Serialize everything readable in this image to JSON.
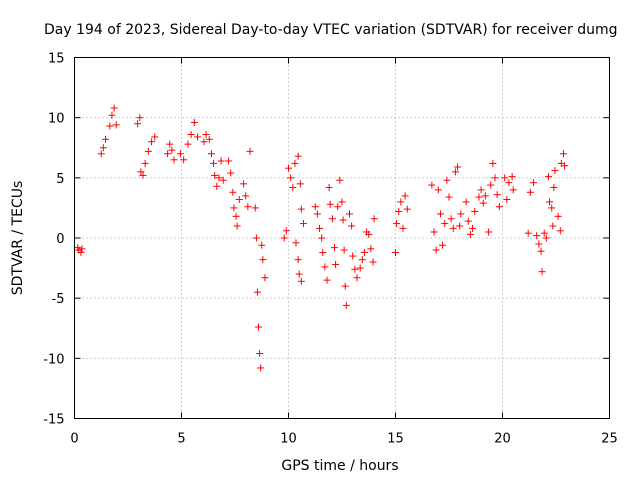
{
  "chart_data": {
    "type": "scatter",
    "title": "Day 194 of 2023, Sidereal Day-to-day VTEC variation (SDTVAR) for receiver dumg",
    "xlabel": "GPS time / hours",
    "ylabel": "SDTVAR / TECUs",
    "xlim": [
      0,
      25
    ],
    "ylim": [
      -15,
      15
    ],
    "xticks": [
      0,
      5,
      10,
      15,
      20,
      25
    ],
    "yticks": [
      -15,
      -10,
      -5,
      0,
      5,
      10,
      15
    ],
    "xtick_labels": [
      "0",
      "5",
      "10",
      "15",
      "20",
      "25"
    ],
    "ytick_labels": [
      "-15",
      "-10",
      "-5",
      "0",
      "5",
      "10",
      "15"
    ],
    "grid": true,
    "marker": "plus",
    "color": "#ff0000",
    "series": [
      {
        "name": "SDTVAR",
        "segments": [
          [
            0.15,
            -0.8
          ],
          [
            0.2,
            -1.0
          ],
          [
            0.3,
            -1.2
          ],
          [
            0.35,
            -0.9
          ],
          [
            1.25,
            7.0
          ],
          [
            1.35,
            7.5
          ],
          [
            1.45,
            8.2
          ],
          [
            1.65,
            9.3
          ],
          [
            1.75,
            10.2
          ],
          [
            1.85,
            10.8
          ],
          [
            1.95,
            9.4
          ],
          [
            2.95,
            9.5
          ],
          [
            3.05,
            10.0
          ],
          [
            3.1,
            5.5
          ],
          [
            3.2,
            5.2
          ],
          [
            3.3,
            6.2
          ],
          [
            3.45,
            7.2
          ],
          [
            3.6,
            8.0
          ],
          [
            3.75,
            8.4
          ],
          [
            4.35,
            7.0
          ],
          [
            4.45,
            7.8
          ],
          [
            4.55,
            7.3
          ],
          [
            4.65,
            6.5
          ],
          [
            4.95,
            7.0
          ],
          [
            5.1,
            6.5
          ],
          [
            5.3,
            7.8
          ],
          [
            5.45,
            8.6
          ],
          [
            5.6,
            9.6
          ],
          [
            5.75,
            8.4
          ],
          [
            6.05,
            8.0
          ],
          [
            6.15,
            8.6
          ],
          [
            6.3,
            8.2
          ],
          [
            6.4,
            7.0
          ],
          [
            6.5,
            6.2
          ],
          [
            6.55,
            5.2
          ],
          [
            6.65,
            4.3
          ],
          [
            6.75,
            5.0
          ],
          [
            6.85,
            6.4
          ],
          [
            6.95,
            4.8
          ],
          [
            7.2,
            6.4
          ],
          [
            7.3,
            5.4
          ],
          [
            7.4,
            3.8
          ],
          [
            7.45,
            2.5
          ],
          [
            7.55,
            1.8
          ],
          [
            7.6,
            1.0
          ],
          [
            7.7,
            3.2
          ],
          [
            7.9,
            4.5
          ],
          [
            8.0,
            3.5
          ],
          [
            8.1,
            2.6
          ],
          [
            8.2,
            7.2
          ],
          [
            8.45,
            2.5
          ],
          [
            8.5,
            0.0
          ],
          [
            8.55,
            -4.5
          ],
          [
            8.6,
            -7.4
          ],
          [
            8.65,
            -9.6
          ],
          [
            8.7,
            -10.8
          ],
          [
            8.75,
            -0.6
          ],
          [
            8.8,
            -1.8
          ],
          [
            8.9,
            -3.3
          ],
          [
            9.8,
            0.0
          ],
          [
            9.9,
            0.6
          ],
          [
            10.0,
            5.8
          ],
          [
            10.1,
            5.0
          ],
          [
            10.2,
            4.2
          ],
          [
            10.3,
            6.2
          ],
          [
            10.45,
            6.8
          ],
          [
            10.55,
            4.5
          ],
          [
            10.6,
            2.4
          ],
          [
            10.7,
            1.2
          ],
          [
            10.35,
            -0.4
          ],
          [
            10.45,
            -1.8
          ],
          [
            10.5,
            -3.0
          ],
          [
            10.6,
            -3.6
          ],
          [
            11.25,
            2.6
          ],
          [
            11.35,
            2.0
          ],
          [
            11.45,
            0.8
          ],
          [
            11.55,
            0.0
          ],
          [
            11.6,
            -1.2
          ],
          [
            11.7,
            -2.4
          ],
          [
            11.8,
            -3.5
          ],
          [
            11.9,
            4.2
          ],
          [
            11.95,
            2.8
          ],
          [
            12.05,
            1.6
          ],
          [
            12.15,
            -0.8
          ],
          [
            12.2,
            -2.2
          ],
          [
            12.3,
            2.6
          ],
          [
            12.4,
            4.8
          ],
          [
            12.5,
            3.0
          ],
          [
            12.55,
            1.5
          ],
          [
            12.6,
            -1.0
          ],
          [
            12.65,
            -4.0
          ],
          [
            12.7,
            -5.6
          ],
          [
            12.85,
            2.0
          ],
          [
            12.95,
            1.0
          ],
          [
            13.0,
            -1.5
          ],
          [
            13.1,
            -2.6
          ],
          [
            13.2,
            -3.3
          ],
          [
            13.35,
            -2.5
          ],
          [
            13.45,
            -1.8
          ],
          [
            13.55,
            -1.2
          ],
          [
            13.65,
            0.5
          ],
          [
            13.75,
            0.3
          ],
          [
            13.85,
            -0.9
          ],
          [
            13.95,
            -2.0
          ],
          [
            14.0,
            1.6
          ],
          [
            15.0,
            -1.2
          ],
          [
            15.05,
            1.2
          ],
          [
            15.15,
            2.2
          ],
          [
            15.25,
            3.0
          ],
          [
            15.35,
            0.8
          ],
          [
            15.45,
            3.5
          ],
          [
            15.55,
            2.4
          ],
          [
            16.7,
            4.4
          ],
          [
            16.8,
            0.5
          ],
          [
            16.9,
            -1.0
          ],
          [
            17.0,
            4.0
          ],
          [
            17.1,
            2.0
          ],
          [
            17.2,
            -0.6
          ],
          [
            17.3,
            1.2
          ],
          [
            17.4,
            4.8
          ],
          [
            17.5,
            3.4
          ],
          [
            17.6,
            1.6
          ],
          [
            17.7,
            0.8
          ],
          [
            17.8,
            5.5
          ],
          [
            17.9,
            5.9
          ],
          [
            18.0,
            1.0
          ],
          [
            18.05,
            2.0
          ],
          [
            18.3,
            3.0
          ],
          [
            18.4,
            1.4
          ],
          [
            18.5,
            0.3
          ],
          [
            18.6,
            0.8
          ],
          [
            18.7,
            2.2
          ],
          [
            18.9,
            3.4
          ],
          [
            19.0,
            4.0
          ],
          [
            19.1,
            2.9
          ],
          [
            19.2,
            3.5
          ],
          [
            19.35,
            0.5
          ],
          [
            19.45,
            4.4
          ],
          [
            19.55,
            6.2
          ],
          [
            19.65,
            5.0
          ],
          [
            19.75,
            3.6
          ],
          [
            19.85,
            2.6
          ],
          [
            20.1,
            5.0
          ],
          [
            20.2,
            3.2
          ],
          [
            20.3,
            4.6
          ],
          [
            20.45,
            5.1
          ],
          [
            20.5,
            4.0
          ],
          [
            21.2,
            0.4
          ],
          [
            21.3,
            3.8
          ],
          [
            21.45,
            4.6
          ],
          [
            21.6,
            0.2
          ],
          [
            21.7,
            -0.5
          ],
          [
            21.8,
            -1.1
          ],
          [
            21.85,
            -2.8
          ],
          [
            21.95,
            0.4
          ],
          [
            22.05,
            0.0
          ],
          [
            22.15,
            5.1
          ],
          [
            22.2,
            3.0
          ],
          [
            22.3,
            2.5
          ],
          [
            22.35,
            1.0
          ],
          [
            22.4,
            4.2
          ],
          [
            22.45,
            5.6
          ],
          [
            22.6,
            1.8
          ],
          [
            22.7,
            0.6
          ],
          [
            22.75,
            6.2
          ],
          [
            22.85,
            7.0
          ],
          [
            22.9,
            6.0
          ]
        ]
      }
    ]
  }
}
